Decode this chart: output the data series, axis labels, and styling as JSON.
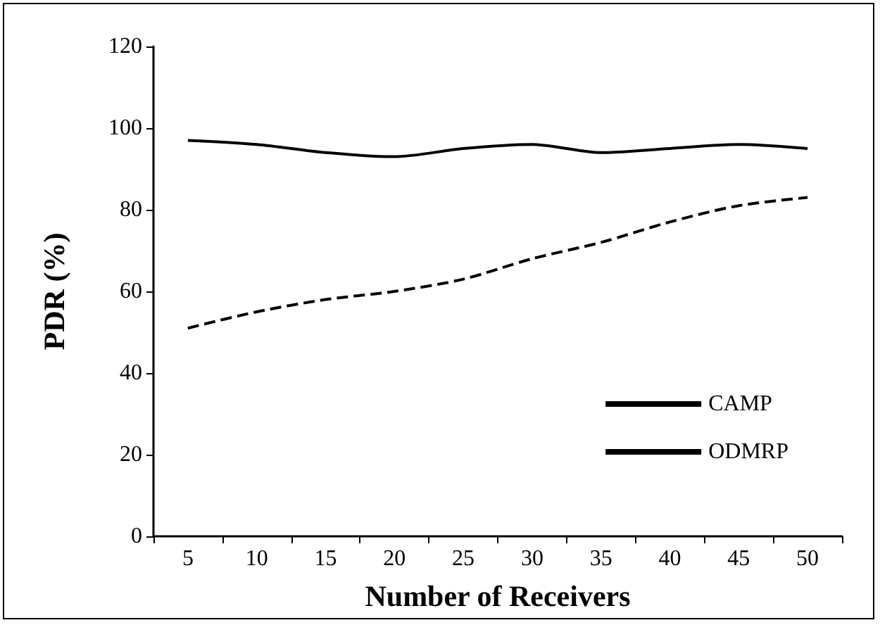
{
  "chart_data": {
    "type": "line",
    "xlabel": "Number of Receivers",
    "ylabel": "PDR (%)",
    "categories": [
      "5",
      "10",
      "15",
      "20",
      "25",
      "30",
      "35",
      "40",
      "45",
      "50"
    ],
    "series": [
      {
        "name": "CAMP",
        "color": "#000000",
        "line_style": "dashed",
        "values": [
          51,
          55,
          58,
          60,
          63,
          68,
          72,
          77,
          81,
          83
        ]
      },
      {
        "name": "ODMRP",
        "color": "#000000",
        "line_style": "solid",
        "values": [
          97,
          96,
          94,
          93,
          95,
          96,
          94,
          95,
          96,
          95
        ]
      }
    ],
    "ylim": [
      0,
      120
    ],
    "yticks": [
      0,
      20,
      40,
      60,
      80,
      100,
      120
    ],
    "grid": false,
    "legend": "bottom right",
    "marker": "none"
  }
}
